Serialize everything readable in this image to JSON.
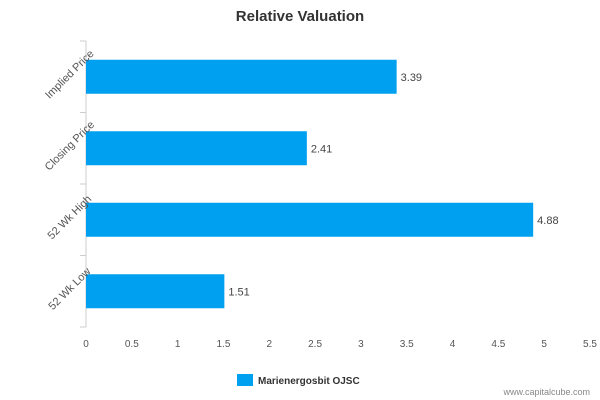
{
  "chart_data": {
    "type": "bar",
    "orientation": "horizontal",
    "title": "Relative Valuation",
    "categories": [
      "Implied Price",
      "Closing Price",
      "52 Wk High",
      "52 Wk Low"
    ],
    "series": [
      {
        "name": "Marienergosbit OJSC",
        "values": [
          3.39,
          2.41,
          4.88,
          1.51
        ],
        "color": "#00a0f0"
      }
    ],
    "data_labels": [
      "3.39",
      "2.41",
      "4.88",
      "1.51"
    ],
    "xlim": [
      0,
      5.5
    ],
    "xticks": [
      "0",
      "0.5",
      "1",
      "1.5",
      "2",
      "2.5",
      "3",
      "3.5",
      "4",
      "4.5",
      "5",
      "5.5"
    ],
    "xtick_values": [
      0,
      0.5,
      1,
      1.5,
      2,
      2.5,
      3,
      3.5,
      4,
      4.5,
      5,
      5.5
    ],
    "grid": false,
    "legend_position": "bottom-center"
  },
  "watermark": "www.capitalcube.com"
}
